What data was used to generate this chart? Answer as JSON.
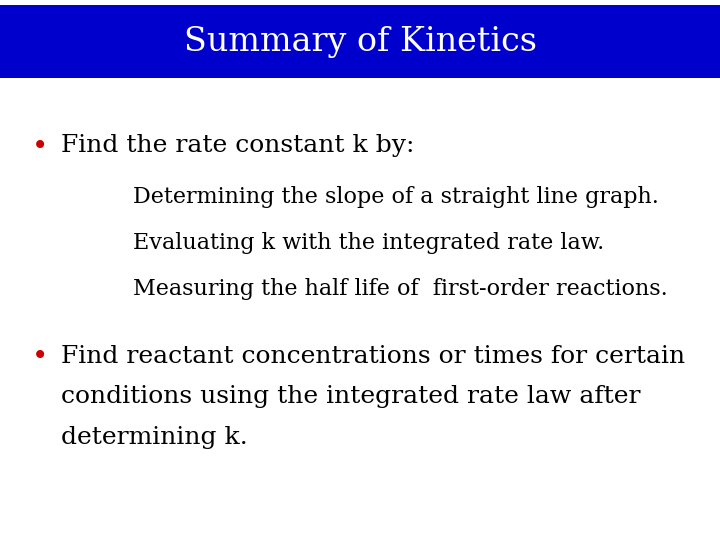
{
  "title": "Summary of Kinetics",
  "title_bg_color": "#0000CC",
  "title_text_color": "#FFFFFF",
  "background_color": "#FFFFFF",
  "bullet_color": "#CC0000",
  "text_color": "#000000",
  "bullet1": "Find the rate constant k by:",
  "sub_items": [
    "Determining the slope of a straight line graph.",
    "Evaluating k with the integrated rate law.",
    "Measuring the half life of  first-order reactions."
  ],
  "bullet2_line1": "Find reactant concentrations or times for certain",
  "bullet2_line2": "conditions using the integrated rate law after",
  "bullet2_line3": "determining k.",
  "title_fontsize": 24,
  "bullet_fontsize": 18,
  "sub_fontsize": 16,
  "fig_width": 7.2,
  "fig_height": 5.4,
  "dpi": 100
}
